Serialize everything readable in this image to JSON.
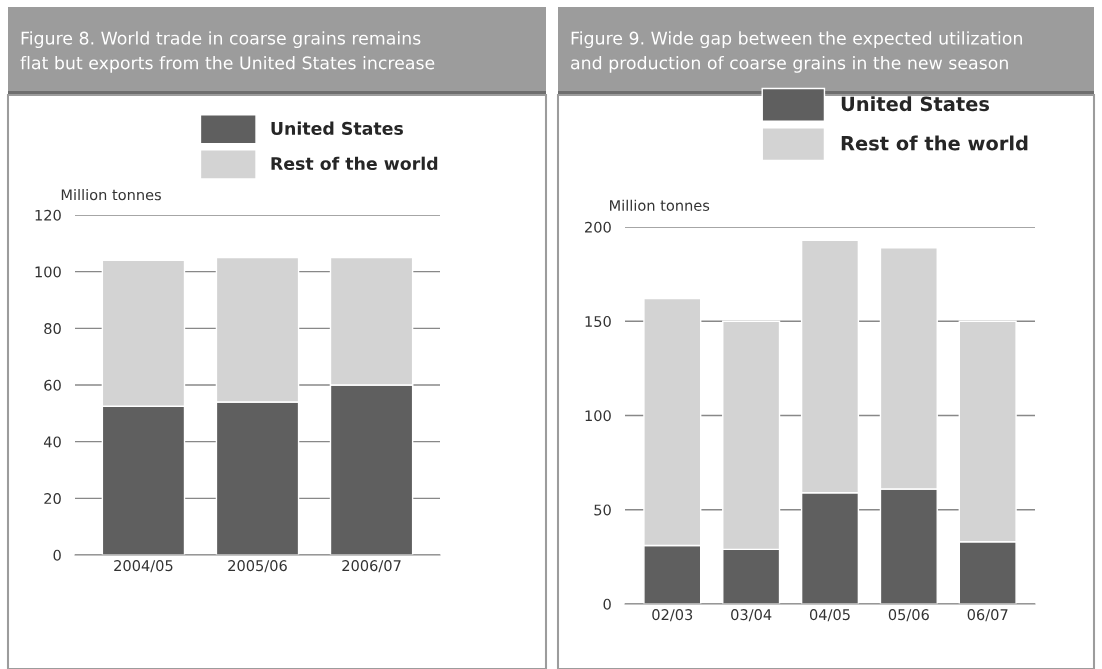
{
  "chart_data": [
    {
      "type": "bar",
      "title": "Figure 8. World trade in coarse grains remains flat but exports from the United States increase",
      "ylabel": "Million tonnes",
      "categories": [
        "2004/05",
        "2005/06",
        "2006/07"
      ],
      "stacked": true,
      "series": [
        {
          "name": "United States",
          "color": "#5f5f5f",
          "values": [
            52.5,
            54,
            60
          ]
        },
        {
          "name": "Rest of the world",
          "color": "#d3d3d3",
          "values": [
            51.5,
            51,
            45
          ]
        }
      ],
      "ylim": [
        0,
        120
      ],
      "yticks": [
        0,
        20,
        40,
        60,
        80,
        100,
        120
      ],
      "grid": "y",
      "legend": "top"
    },
    {
      "type": "bar",
      "title": "Figure 9. Wide gap between the expected utilization and production of coarse grains in the new season",
      "ylabel": "Million tonnes",
      "categories": [
        "02/03",
        "03/04",
        "04/05",
        "05/06",
        "06/07"
      ],
      "stacked": true,
      "series": [
        {
          "name": "United States",
          "color": "#5f5f5f",
          "values": [
            31,
            29,
            59,
            61,
            33
          ]
        },
        {
          "name": "Rest of the world",
          "color": "#d3d3d3",
          "values": [
            131,
            121,
            134,
            128,
            117
          ]
        }
      ],
      "ylim": [
        0,
        200
      ],
      "yticks": [
        0,
        50,
        100,
        150,
        200
      ],
      "grid": "y",
      "legend": "top"
    }
  ]
}
